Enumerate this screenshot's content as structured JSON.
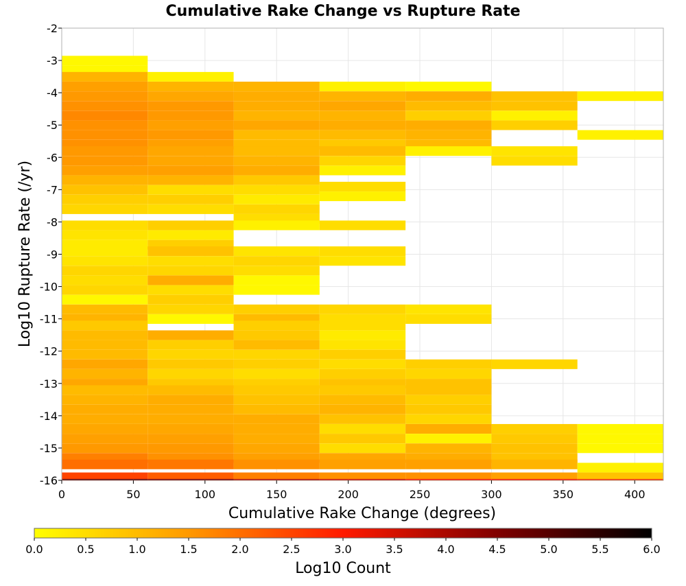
{
  "chart_data": {
    "type": "heatmap",
    "title": "Cumulative Rake Change vs Rupture Rate",
    "xlabel": "Cumulative Rake Change (degrees)",
    "ylabel": "Log10 Rupture Rate (/yr)",
    "xlim": [
      0,
      420
    ],
    "ylim": [
      -16,
      -2
    ],
    "x_ticks": [
      "0",
      "50",
      "100",
      "150",
      "200",
      "250",
      "300",
      "350",
      "400"
    ],
    "y_ticks": [
      "-2",
      "-3",
      "-4",
      "-5",
      "-6",
      "-7",
      "-8",
      "-9",
      "-10",
      "-11",
      "-12",
      "-13",
      "-14",
      "-15",
      "-16"
    ],
    "x_bin_width": 60,
    "y_bin_height": 0.2857,
    "grid": true,
    "colorbar": {
      "label": "Log10 Count",
      "range": [
        0,
        6
      ],
      "ticks": [
        "0.0",
        "0.5",
        "1.0",
        "1.5",
        "2.0",
        "2.5",
        "3.0",
        "3.5",
        "4.0",
        "4.5",
        "5.0",
        "5.5",
        "6.0"
      ],
      "stops": [
        "#ffff00",
        "#ff9900",
        "#ff1a00",
        "#800000",
        "#000000"
      ]
    },
    "columns": [
      {
        "x_start": 0,
        "cells": [
          [
            -3.0,
            0.1
          ],
          [
            -3.3,
            0.1
          ],
          [
            -3.5,
            1.1
          ],
          [
            -3.8,
            1.4
          ],
          [
            -4.1,
            1.5
          ],
          [
            -4.4,
            1.6
          ],
          [
            -4.7,
            1.7
          ],
          [
            -5.0,
            1.6
          ],
          [
            -5.3,
            1.6
          ],
          [
            -5.6,
            1.6
          ],
          [
            -5.8,
            1.5
          ],
          [
            -6.1,
            1.5
          ],
          [
            -6.4,
            1.4
          ],
          [
            -6.7,
            1.1
          ],
          [
            -7.0,
            0.9
          ],
          [
            -7.3,
            0.7
          ],
          [
            -7.6,
            0.6
          ],
          [
            -8.1,
            0.5
          ],
          [
            -8.4,
            0.4
          ],
          [
            -8.7,
            0.3
          ],
          [
            -8.9,
            0.3
          ],
          [
            -9.2,
            0.4
          ],
          [
            -9.5,
            0.6
          ],
          [
            -9.8,
            0.5
          ],
          [
            -10.1,
            0.6
          ],
          [
            -10.4,
            0.1
          ],
          [
            -10.7,
            1.0
          ],
          [
            -11.0,
            1.1
          ],
          [
            -11.2,
            0.8
          ],
          [
            -11.5,
            1.0
          ],
          [
            -11.8,
            1.0
          ],
          [
            -12.1,
            1.0
          ],
          [
            -12.4,
            1.3
          ],
          [
            -12.7,
            1.1
          ],
          [
            -13.0,
            1.3
          ],
          [
            -13.2,
            1.0
          ],
          [
            -13.5,
            1.1
          ],
          [
            -13.8,
            1.2
          ],
          [
            -14.1,
            1.2
          ],
          [
            -14.4,
            1.3
          ],
          [
            -14.7,
            1.4
          ],
          [
            -15.0,
            1.5
          ],
          [
            -15.3,
            1.8
          ],
          [
            -15.5,
            2.0
          ],
          [
            -15.9,
            2.5
          ],
          [
            -16.1,
            4.8
          ]
        ]
      },
      {
        "x_start": 60,
        "cells": [
          [
            -3.5,
            0.2
          ],
          [
            -3.8,
            1.1
          ],
          [
            -4.1,
            1.3
          ],
          [
            -4.4,
            1.5
          ],
          [
            -4.7,
            1.5
          ],
          [
            -5.0,
            1.4
          ],
          [
            -5.3,
            1.5
          ],
          [
            -5.6,
            1.4
          ],
          [
            -5.8,
            1.3
          ],
          [
            -6.1,
            1.3
          ],
          [
            -6.4,
            1.4
          ],
          [
            -6.7,
            1.1
          ],
          [
            -7.0,
            0.5
          ],
          [
            -7.3,
            0.7
          ],
          [
            -7.6,
            0.5
          ],
          [
            -8.1,
            0.7
          ],
          [
            -8.4,
            0.3
          ],
          [
            -8.7,
            0.7
          ],
          [
            -8.9,
            0.9
          ],
          [
            -9.2,
            0.5
          ],
          [
            -9.5,
            0.6
          ],
          [
            -9.8,
            1.2
          ],
          [
            -10.1,
            0.5
          ],
          [
            -10.4,
            0.7
          ],
          [
            -10.7,
            0.6
          ],
          [
            -11.0,
            0.1
          ],
          [
            -11.5,
            1.2
          ],
          [
            -11.8,
            0.7
          ],
          [
            -12.1,
            0.6
          ],
          [
            -12.4,
            0.8
          ],
          [
            -12.7,
            0.6
          ],
          [
            -13.0,
            0.8
          ],
          [
            -13.2,
            1.0
          ],
          [
            -13.5,
            1.2
          ],
          [
            -13.8,
            1.2
          ],
          [
            -14.1,
            1.2
          ],
          [
            -14.4,
            1.3
          ],
          [
            -14.7,
            1.4
          ],
          [
            -15.0,
            1.5
          ],
          [
            -15.3,
            1.6
          ],
          [
            -15.5,
            1.9
          ],
          [
            -15.9,
            2.2
          ],
          [
            -16.1,
            4.5
          ]
        ]
      },
      {
        "x_start": 120,
        "cells": [
          [
            -3.8,
            1.1
          ],
          [
            -4.1,
            1.2
          ],
          [
            -4.4,
            1.2
          ],
          [
            -4.7,
            1.1
          ],
          [
            -5.0,
            1.3
          ],
          [
            -5.3,
            1.0
          ],
          [
            -5.6,
            1.0
          ],
          [
            -5.8,
            1.0
          ],
          [
            -6.1,
            1.1
          ],
          [
            -6.4,
            1.2
          ],
          [
            -6.7,
            0.8
          ],
          [
            -7.0,
            0.5
          ],
          [
            -7.3,
            0.3
          ],
          [
            -7.6,
            0.6
          ],
          [
            -7.9,
            0.5
          ],
          [
            -8.1,
            0.2
          ],
          [
            -8.9,
            0.4
          ],
          [
            -9.2,
            0.6
          ],
          [
            -9.5,
            0.5
          ],
          [
            -9.8,
            0.1
          ],
          [
            -10.1,
            0.1
          ],
          [
            -10.7,
            0.7
          ],
          [
            -11.0,
            1.0
          ],
          [
            -11.2,
            0.7
          ],
          [
            -11.5,
            0.8
          ],
          [
            -11.8,
            1.0
          ],
          [
            -12.1,
            0.6
          ],
          [
            -12.4,
            0.7
          ],
          [
            -12.7,
            0.5
          ],
          [
            -13.0,
            0.7
          ],
          [
            -13.2,
            0.8
          ],
          [
            -13.5,
            0.9
          ],
          [
            -13.8,
            1.0
          ],
          [
            -14.1,
            1.2
          ],
          [
            -14.4,
            1.2
          ],
          [
            -14.7,
            1.2
          ],
          [
            -15.0,
            1.3
          ],
          [
            -15.3,
            1.4
          ],
          [
            -15.5,
            1.6
          ],
          [
            -15.9,
            1.8
          ],
          [
            -16.1,
            3.8
          ]
        ]
      },
      {
        "x_start": 180,
        "cells": [
          [
            -3.8,
            0.2
          ],
          [
            -4.1,
            1.1
          ],
          [
            -4.4,
            1.3
          ],
          [
            -4.7,
            1.1
          ],
          [
            -5.0,
            1.2
          ],
          [
            -5.3,
            1.0
          ],
          [
            -5.6,
            0.8
          ],
          [
            -5.8,
            1.0
          ],
          [
            -6.1,
            0.6
          ],
          [
            -6.4,
            0.2
          ],
          [
            -6.9,
            0.5
          ],
          [
            -7.2,
            0.2
          ],
          [
            -8.1,
            0.5
          ],
          [
            -8.9,
            0.5
          ],
          [
            -9.2,
            0.4
          ],
          [
            -10.7,
            0.6
          ],
          [
            -11.0,
            0.5
          ],
          [
            -11.2,
            0.5
          ],
          [
            -11.5,
            0.3
          ],
          [
            -11.8,
            0.4
          ],
          [
            -12.1,
            0.7
          ],
          [
            -12.4,
            0.5
          ],
          [
            -12.7,
            0.7
          ],
          [
            -13.0,
            0.9
          ],
          [
            -13.2,
            0.8
          ],
          [
            -13.5,
            1.0
          ],
          [
            -13.8,
            1.1
          ],
          [
            -14.1,
            0.9
          ],
          [
            -14.4,
            0.5
          ],
          [
            -14.7,
            0.8
          ],
          [
            -15.0,
            0.5
          ],
          [
            -15.3,
            1.3
          ],
          [
            -15.5,
            1.4
          ],
          [
            -15.9,
            1.6
          ],
          [
            -16.1,
            3.5
          ]
        ]
      },
      {
        "x_start": 240,
        "cells": [
          [
            -3.8,
            0.1
          ],
          [
            -4.1,
            1.2
          ],
          [
            -4.4,
            1.0
          ],
          [
            -4.7,
            0.7
          ],
          [
            -5.0,
            1.2
          ],
          [
            -5.3,
            1.1
          ],
          [
            -5.6,
            1.0
          ],
          [
            -5.8,
            0.2
          ],
          [
            -10.7,
            0.4
          ],
          [
            -11.0,
            0.5
          ],
          [
            -12.4,
            0.7
          ],
          [
            -12.7,
            0.6
          ],
          [
            -13.0,
            0.9
          ],
          [
            -13.2,
            0.9
          ],
          [
            -13.5,
            0.7
          ],
          [
            -13.8,
            0.8
          ],
          [
            -14.1,
            0.6
          ],
          [
            -14.4,
            1.2
          ],
          [
            -14.7,
            0.2
          ],
          [
            -15.0,
            1.1
          ],
          [
            -15.3,
            1.2
          ],
          [
            -15.5,
            1.4
          ],
          [
            -15.9,
            1.6
          ],
          [
            -16.1,
            3.0
          ]
        ]
      },
      {
        "x_start": 300,
        "cells": [
          [
            -4.1,
            0.9
          ],
          [
            -4.4,
            0.9
          ],
          [
            -4.7,
            0.2
          ],
          [
            -5.0,
            0.7
          ],
          [
            -5.8,
            0.4
          ],
          [
            -6.1,
            0.5
          ],
          [
            -12.4,
            0.6
          ],
          [
            -14.4,
            0.7
          ],
          [
            -14.7,
            0.8
          ],
          [
            -15.0,
            0.9
          ],
          [
            -15.3,
            0.9
          ],
          [
            -15.5,
            1.1
          ],
          [
            -15.9,
            1.4
          ],
          [
            -16.1,
            3.0
          ]
        ]
      },
      {
        "x_start": 360,
        "cells": [
          [
            -4.1,
            0.2
          ],
          [
            -5.3,
            0.2
          ],
          [
            -14.4,
            0.1
          ],
          [
            -14.7,
            0.1
          ],
          [
            -15.0,
            0.1
          ],
          [
            -15.6,
            0.2
          ],
          [
            -15.9,
            0.9
          ],
          [
            -16.1,
            2.7
          ]
        ]
      }
    ]
  }
}
